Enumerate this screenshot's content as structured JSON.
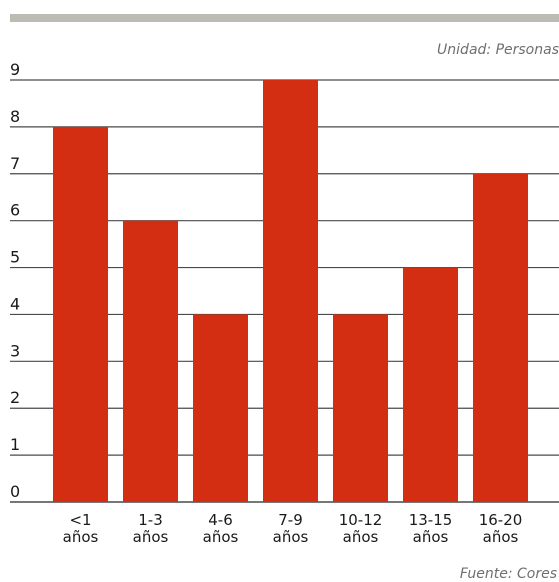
{
  "unit_note": "Unidad: Personas",
  "source_note": "Fuente: Cores",
  "chart_data": {
    "type": "bar",
    "categories": [
      [
        "<1",
        "años"
      ],
      [
        "1-3",
        "años"
      ],
      [
        "4-6",
        "años"
      ],
      [
        "7-9",
        "años"
      ],
      [
        "10-12",
        "años"
      ],
      [
        "13-15",
        "años"
      ],
      [
        "16-20",
        "años"
      ]
    ],
    "values": [
      8,
      6,
      4,
      9,
      4,
      5,
      7
    ],
    "yticks": [
      0,
      1,
      2,
      3,
      4,
      5,
      6,
      7,
      8,
      9
    ],
    "ylim": [
      0,
      9
    ],
    "grid": true,
    "bar_color": "#d42e12",
    "grid_color": "#4a4a4a"
  }
}
